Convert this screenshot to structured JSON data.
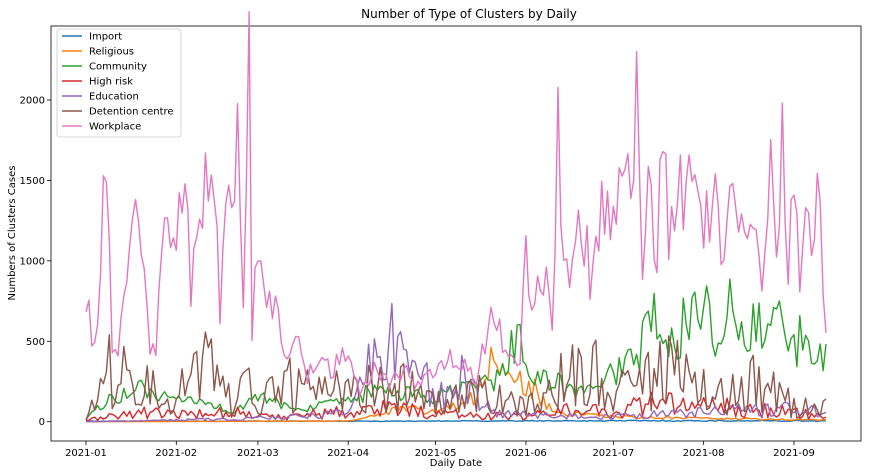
{
  "chart_data": {
    "type": "line",
    "title": "Number of Type of Clusters by Daily",
    "xlabel": "Daily Date",
    "ylabel": "Numbers of Clusters Cases",
    "x_start": "2021-01-01",
    "x_end": "2021-09-12",
    "xlim": [
      "2020-12-20",
      "2021-09-24"
    ],
    "ylim": [
      -120,
      2460
    ],
    "x_ticks": [
      "2021-01",
      "2021-02",
      "2021-03",
      "2021-04",
      "2021-05",
      "2021-06",
      "2021-07",
      "2021-08",
      "2021-09"
    ],
    "y_ticks": [
      0,
      500,
      1000,
      1500,
      2000
    ],
    "legend_position": "upper-left",
    "grid": false,
    "series": [
      {
        "name": "Import",
        "color": "#1f77b4",
        "points": [
          [
            "2021-01-01",
            3
          ],
          [
            "2021-02-15",
            4
          ],
          [
            "2021-04-01",
            3
          ],
          [
            "2021-06-01",
            5
          ],
          [
            "2021-07-15",
            6
          ],
          [
            "2021-09-12",
            5
          ]
        ]
      },
      {
        "name": "Religious",
        "color": "#ff7f0e",
        "points": [
          [
            "2021-01-01",
            0
          ],
          [
            "2021-04-01",
            5
          ],
          [
            "2021-04-10",
            40
          ],
          [
            "2021-04-20",
            80
          ],
          [
            "2021-05-01",
            60
          ],
          [
            "2021-05-10",
            120
          ],
          [
            "2021-05-16",
            180
          ],
          [
            "2021-05-20",
            350
          ],
          [
            "2021-05-24",
            300
          ],
          [
            "2021-05-28",
            320
          ],
          [
            "2021-06-01",
            180
          ],
          [
            "2021-06-04",
            210
          ],
          [
            "2021-06-08",
            90
          ],
          [
            "2021-06-15",
            50
          ],
          [
            "2021-07-01",
            30
          ],
          [
            "2021-08-01",
            20
          ],
          [
            "2021-09-12",
            10
          ]
        ]
      },
      {
        "name": "Community",
        "color": "#2ca02c",
        "points": [
          [
            "2021-01-01",
            20
          ],
          [
            "2021-01-10",
            150
          ],
          [
            "2021-01-20",
            200
          ],
          [
            "2021-02-01",
            120
          ],
          [
            "2021-02-10",
            130
          ],
          [
            "2021-02-20",
            60
          ],
          [
            "2021-03-01",
            150
          ],
          [
            "2021-03-15",
            80
          ],
          [
            "2021-04-01",
            120
          ],
          [
            "2021-04-10",
            200
          ],
          [
            "2021-04-20",
            170
          ],
          [
            "2021-05-01",
            150
          ],
          [
            "2021-05-15",
            220
          ],
          [
            "2021-05-25",
            300
          ],
          [
            "2021-05-30",
            650
          ],
          [
            "2021-06-01",
            300
          ],
          [
            "2021-06-10",
            250
          ],
          [
            "2021-06-20",
            180
          ],
          [
            "2021-07-01",
            300
          ],
          [
            "2021-07-10",
            450
          ],
          [
            "2021-07-15",
            650
          ],
          [
            "2021-07-20",
            420
          ],
          [
            "2021-07-28",
            700
          ],
          [
            "2021-08-01",
            820
          ],
          [
            "2021-08-05",
            580
          ],
          [
            "2021-08-10",
            700
          ],
          [
            "2021-08-15",
            480
          ],
          [
            "2021-08-20",
            620
          ],
          [
            "2021-08-25",
            760
          ],
          [
            "2021-08-28",
            520
          ],
          [
            "2021-09-01",
            420
          ],
          [
            "2021-09-05",
            600
          ],
          [
            "2021-09-08",
            330
          ],
          [
            "2021-09-12",
            430
          ]
        ]
      },
      {
        "name": "High risk",
        "color": "#d62728",
        "points": [
          [
            "2021-01-01",
            10
          ],
          [
            "2021-01-20",
            60
          ],
          [
            "2021-02-01",
            40
          ],
          [
            "2021-02-20",
            70
          ],
          [
            "2021-03-01",
            30
          ],
          [
            "2021-04-01",
            60
          ],
          [
            "2021-04-15",
            90
          ],
          [
            "2021-05-01",
            50
          ],
          [
            "2021-06-01",
            30
          ],
          [
            "2021-06-15",
            80
          ],
          [
            "2021-07-01",
            60
          ],
          [
            "2021-07-15",
            120
          ],
          [
            "2021-08-01",
            100
          ],
          [
            "2021-08-15",
            80
          ],
          [
            "2021-09-01",
            70
          ],
          [
            "2021-09-12",
            20
          ]
        ]
      },
      {
        "name": "Education",
        "color": "#9467bd",
        "points": [
          [
            "2021-01-01",
            0
          ],
          [
            "2021-02-01",
            10
          ],
          [
            "2021-03-01",
            20
          ],
          [
            "2021-04-01",
            50
          ],
          [
            "2021-04-10",
            420
          ],
          [
            "2021-04-20",
            500
          ],
          [
            "2021-05-01",
            150
          ],
          [
            "2021-05-10",
            260
          ],
          [
            "2021-05-20",
            60
          ],
          [
            "2021-06-01",
            40
          ],
          [
            "2021-07-01",
            30
          ],
          [
            "2021-08-01",
            60
          ],
          [
            "2021-09-01",
            90
          ],
          [
            "2021-09-12",
            40
          ]
        ]
      },
      {
        "name": "Detention centre",
        "color": "#8c564b",
        "points": [
          [
            "2021-01-01",
            20
          ],
          [
            "2021-01-12",
            420
          ],
          [
            "2021-01-20",
            250
          ],
          [
            "2021-02-01",
            150
          ],
          [
            "2021-02-10",
            420
          ],
          [
            "2021-02-20",
            100
          ],
          [
            "2021-02-25",
            280
          ],
          [
            "2021-03-01",
            100
          ],
          [
            "2021-03-15",
            280
          ],
          [
            "2021-04-01",
            150
          ],
          [
            "2021-04-15",
            250
          ],
          [
            "2021-05-01",
            100
          ],
          [
            "2021-05-15",
            200
          ],
          [
            "2021-06-01",
            80
          ],
          [
            "2021-06-10",
            250
          ],
          [
            "2021-06-25",
            300
          ],
          [
            "2021-07-05",
            250
          ],
          [
            "2021-07-20",
            350
          ],
          [
            "2021-08-01",
            180
          ],
          [
            "2021-08-10",
            180
          ],
          [
            "2021-08-20",
            260
          ],
          [
            "2021-09-01",
            100
          ],
          [
            "2021-09-12",
            80
          ]
        ]
      },
      {
        "name": "Workplace",
        "color": "#e377c2",
        "points": [
          [
            "2021-01-01",
            670
          ],
          [
            "2021-01-02",
            880
          ],
          [
            "2021-01-03",
            430
          ],
          [
            "2021-01-05",
            600
          ],
          [
            "2021-01-07",
            1460
          ],
          [
            "2021-01-08",
            1400
          ],
          [
            "2021-01-10",
            500
          ],
          [
            "2021-01-12",
            450
          ],
          [
            "2021-01-14",
            760
          ],
          [
            "2021-01-18",
            1170
          ],
          [
            "2021-01-21",
            960
          ],
          [
            "2021-01-23",
            350
          ],
          [
            "2021-01-25",
            500
          ],
          [
            "2021-01-28",
            1180
          ],
          [
            "2021-02-01",
            1320
          ],
          [
            "2021-02-04",
            1460
          ],
          [
            "2021-02-06",
            760
          ],
          [
            "2021-02-09",
            1400
          ],
          [
            "2021-02-12",
            1430
          ],
          [
            "2021-02-14",
            1480
          ],
          [
            "2021-02-16",
            650
          ],
          [
            "2021-02-18",
            1370
          ],
          [
            "2021-02-20",
            1130
          ],
          [
            "2021-02-22",
            1850
          ],
          [
            "2021-02-24",
            820
          ],
          [
            "2021-02-26",
            2330
          ],
          [
            "2021-02-27",
            450
          ],
          [
            "2021-02-28",
            860
          ],
          [
            "2021-03-02",
            1120
          ],
          [
            "2021-03-04",
            700
          ],
          [
            "2021-03-07",
            810
          ],
          [
            "2021-03-10",
            420
          ],
          [
            "2021-03-14",
            580
          ],
          [
            "2021-03-18",
            270
          ],
          [
            "2021-03-22",
            420
          ],
          [
            "2021-03-26",
            310
          ],
          [
            "2021-04-01",
            440
          ],
          [
            "2021-04-05",
            150
          ],
          [
            "2021-04-10",
            350
          ],
          [
            "2021-04-15",
            230
          ],
          [
            "2021-04-20",
            320
          ],
          [
            "2021-04-25",
            220
          ],
          [
            "2021-05-01",
            340
          ],
          [
            "2021-05-10",
            400
          ],
          [
            "2021-05-15",
            250
          ],
          [
            "2021-05-20",
            680
          ],
          [
            "2021-05-25",
            440
          ],
          [
            "2021-05-30",
            370
          ],
          [
            "2021-06-01",
            1090
          ],
          [
            "2021-06-03",
            580
          ],
          [
            "2021-06-05",
            900
          ],
          [
            "2021-06-08",
            820
          ],
          [
            "2021-06-10",
            620
          ],
          [
            "2021-06-12",
            1860
          ],
          [
            "2021-06-14",
            870
          ],
          [
            "2021-06-17",
            1050
          ],
          [
            "2021-06-20",
            1350
          ],
          [
            "2021-06-23",
            900
          ],
          [
            "2021-06-26",
            1320
          ],
          [
            "2021-06-29",
            1280
          ],
          [
            "2021-07-02",
            1120
          ],
          [
            "2021-07-05",
            1740
          ],
          [
            "2021-07-07",
            1450
          ],
          [
            "2021-07-09",
            2130
          ],
          [
            "2021-07-11",
            940
          ],
          [
            "2021-07-13",
            1650
          ],
          [
            "2021-07-16",
            1000
          ],
          [
            "2021-07-18",
            1770
          ],
          [
            "2021-07-20",
            1100
          ],
          [
            "2021-07-23",
            1550
          ],
          [
            "2021-07-26",
            1400
          ],
          [
            "2021-07-29",
            1580
          ],
          [
            "2021-08-01",
            1050
          ],
          [
            "2021-08-04",
            1540
          ],
          [
            "2021-08-07",
            1030
          ],
          [
            "2021-08-10",
            1320
          ],
          [
            "2021-08-14",
            1080
          ],
          [
            "2021-08-18",
            1340
          ],
          [
            "2021-08-21",
            1000
          ],
          [
            "2021-08-24",
            1550
          ],
          [
            "2021-08-26",
            980
          ],
          [
            "2021-08-28",
            1940
          ],
          [
            "2021-08-30",
            1030
          ],
          [
            "2021-09-01",
            1480
          ],
          [
            "2021-09-03",
            950
          ],
          [
            "2021-09-05",
            1400
          ],
          [
            "2021-09-07",
            960
          ],
          [
            "2021-09-09",
            1450
          ],
          [
            "2021-09-11",
            950
          ],
          [
            "2021-09-12",
            670
          ]
        ]
      }
    ]
  }
}
